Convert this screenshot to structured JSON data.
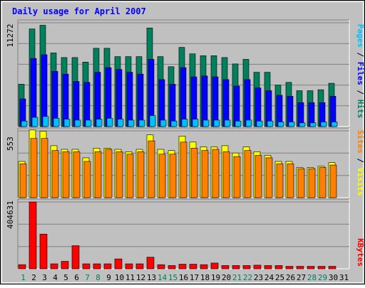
{
  "chart_data": {
    "type": "bar",
    "title": "Daily usage for April 2007",
    "categories": [
      "1",
      "2",
      "3",
      "4",
      "5",
      "6",
      "7",
      "8",
      "9",
      "10",
      "11",
      "12",
      "13",
      "14",
      "15",
      "16",
      "17",
      "18",
      "19",
      "20",
      "21",
      "22",
      "23",
      "24",
      "25",
      "26",
      "27",
      "28",
      "29",
      "30",
      "31"
    ],
    "weekend_days": [
      "1",
      "7",
      "8",
      "14",
      "15",
      "21",
      "22",
      "28",
      "29"
    ],
    "panels": [
      {
        "id": "hits",
        "max_label": "11272",
        "ymax": 11272,
        "series": [
          {
            "name": "Hits",
            "color": "#00805c",
            "values": [
              4600,
              10600,
              11000,
              8000,
              7500,
              7500,
              7000,
              8500,
              8500,
              7600,
              7600,
              7600,
              10700,
              7600,
              6500,
              8600,
              7900,
              7700,
              7700,
              7500,
              6800,
              7300,
              5900,
              5900,
              4500,
              4800,
              3900,
              3900,
              4000,
              4700,
              0
            ]
          },
          {
            "name": "Files",
            "color": "#0000ff",
            "values": [
              3000,
              7400,
              7800,
              6000,
              5700,
              4900,
              4800,
              5900,
              6400,
              6200,
              5900,
              5700,
              7300,
              5100,
              4600,
              6400,
              5400,
              5500,
              5400,
              5100,
              4400,
              5100,
              4200,
              3900,
              3400,
              3300,
              2600,
              2600,
              2600,
              3300,
              0
            ]
          },
          {
            "name": "Pages",
            "color": "#00c0ff",
            "values": [
              600,
              1000,
              1100,
              900,
              800,
              700,
              700,
              800,
              900,
              800,
              700,
              700,
              1200,
              700,
              600,
              800,
              800,
              700,
              700,
              700,
              600,
              700,
              600,
              600,
              500,
              500,
              400,
              400,
              500,
              500,
              0
            ]
          }
        ]
      },
      {
        "id": "visits",
        "max_label": "553",
        "ymax": 553,
        "series": [
          {
            "name": "Visits",
            "color": "#ffff00",
            "values": [
              300,
              560,
              550,
              430,
              400,
              400,
              330,
              410,
              410,
              400,
              380,
              400,
              520,
              400,
              390,
              510,
              460,
              420,
              420,
              430,
              370,
              420,
              380,
              350,
              300,
              300,
              250,
              250,
              260,
              290,
              0
            ]
          },
          {
            "name": "Sites",
            "color": "#ff8000",
            "values": [
              280,
              490,
              490,
              390,
              380,
              380,
              300,
              380,
              400,
              380,
              360,
              380,
              470,
              360,
              360,
              460,
              410,
              390,
              400,
              380,
              340,
              390,
              350,
              330,
              280,
              280,
              240,
              240,
              250,
              270,
              0
            ]
          }
        ]
      },
      {
        "id": "kbytes",
        "max_label": "404631",
        "ymax": 404631,
        "series": [
          {
            "name": "KBytes",
            "color": "#ff0000",
            "values": [
              25000,
              404631,
              210000,
              30000,
              45000,
              140000,
              30000,
              30000,
              30000,
              60000,
              30000,
              30000,
              70000,
              25000,
              20000,
              28000,
              28000,
              25000,
              35000,
              20000,
              20000,
              20000,
              22000,
              20000,
              20000,
              15000,
              15000,
              15000,
              15000,
              15000,
              0
            ]
          }
        ]
      }
    ],
    "right_labels": [
      [
        "Pages",
        " / ",
        "Files",
        " / ",
        "Hits"
      ],
      [
        "Sites",
        " / ",
        "Visits"
      ],
      [
        "KBytes"
      ]
    ],
    "colors": {
      "background": "#c0c0c0",
      "title_text": "#0000ff",
      "axis_text": "#000000",
      "weekend_text": "#00805c",
      "gridline": "#808080",
      "label_pages": "#00c0ff",
      "label_files": "#0000ff",
      "label_hits": "#00805c",
      "label_sites": "#ff8000",
      "label_visits": "#ffff00",
      "label_kbytes": "#ff0000"
    }
  }
}
